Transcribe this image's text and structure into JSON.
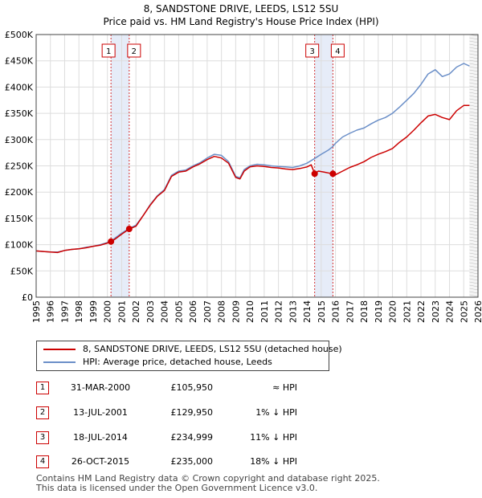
{
  "title": {
    "line1": "8, SANDSTONE DRIVE, LEEDS, LS12 5SU",
    "line2": "Price paid vs. HM Land Registry's House Price Index (HPI)"
  },
  "legend": {
    "property": "8, SANDSTONE DRIVE, LEEDS, LS12 5SU (detached house)",
    "hpi": "HPI: Average price, detached house, Leeds"
  },
  "colors": {
    "property": "#cc0000",
    "hpi": "#6b8fc8",
    "band": "#e6ecf8",
    "grid": "#dddddd"
  },
  "sales": [
    {
      "num": "1",
      "date": "31-MAR-2000",
      "price": "£105,950",
      "hpi_rel": "≈ HPI"
    },
    {
      "num": "2",
      "date": "13-JUL-2001",
      "price": "£129,950",
      "hpi_rel": "1% ↓ HPI"
    },
    {
      "num": "3",
      "date": "18-JUL-2014",
      "price": "£234,999",
      "hpi_rel": "11% ↓ HPI"
    },
    {
      "num": "4",
      "date": "26-OCT-2015",
      "price": "£235,000",
      "hpi_rel": "18% ↓ HPI"
    }
  ],
  "footer": {
    "line1": "Contains HM Land Registry data © Crown copyright and database right 2025.",
    "line2": "This data is licensed under the Open Government Licence v3.0."
  },
  "chart_data": {
    "type": "line",
    "title": "8, SANDSTONE DRIVE, LEEDS, LS12 5SU — Price paid vs. HM Land Registry's House Price Index (HPI)",
    "xlabel": "",
    "ylabel": "",
    "xlim": [
      1995,
      2026
    ],
    "ylim": [
      0,
      500000
    ],
    "grid": true,
    "x_ticks": [
      1995,
      1996,
      1997,
      1998,
      1999,
      2000,
      2001,
      2002,
      2003,
      2004,
      2005,
      2006,
      2007,
      2008,
      2009,
      2010,
      2011,
      2012,
      2013,
      2014,
      2015,
      2016,
      2017,
      2018,
      2019,
      2020,
      2021,
      2022,
      2023,
      2024,
      2025,
      2026
    ],
    "y_ticks": [
      {
        "value": 0,
        "label": "£0"
      },
      {
        "value": 50000,
        "label": "£50K"
      },
      {
        "value": 100000,
        "label": "£100K"
      },
      {
        "value": 150000,
        "label": "£150K"
      },
      {
        "value": 200000,
        "label": "£200K"
      },
      {
        "value": 250000,
        "label": "£250K"
      },
      {
        "value": 300000,
        "label": "£300K"
      },
      {
        "value": 350000,
        "label": "£350K"
      },
      {
        "value": 400000,
        "label": "£400K"
      },
      {
        "value": 450000,
        "label": "£450K"
      },
      {
        "value": 500000,
        "label": "£500K"
      }
    ],
    "highlight_bands": [
      [
        2000.25,
        2001.53
      ],
      [
        2014.54,
        2015.82
      ]
    ],
    "future_from": 2025.4,
    "series": [
      {
        "name": "8, SANDSTONE DRIVE, LEEDS, LS12 5SU (detached house)",
        "color": "#cc0000",
        "points": [
          [
            1995.0,
            88000
          ],
          [
            1995.5,
            87000
          ],
          [
            1996.0,
            86000
          ],
          [
            1996.5,
            85000
          ],
          [
            1997.0,
            89000
          ],
          [
            1997.5,
            91000
          ],
          [
            1998.0,
            92000
          ],
          [
            1998.5,
            94000
          ],
          [
            1999.0,
            97000
          ],
          [
            1999.5,
            99000
          ],
          [
            2000.0,
            103000
          ],
          [
            2000.25,
            105950
          ],
          [
            2000.5,
            110000
          ],
          [
            2001.0,
            120000
          ],
          [
            2001.53,
            129950
          ],
          [
            2002.0,
            135000
          ],
          [
            2002.5,
            155000
          ],
          [
            2003.0,
            175000
          ],
          [
            2003.5,
            192000
          ],
          [
            2004.0,
            203000
          ],
          [
            2004.5,
            230000
          ],
          [
            2005.0,
            238000
          ],
          [
            2005.5,
            240000
          ],
          [
            2006.0,
            248000
          ],
          [
            2006.5,
            254000
          ],
          [
            2007.0,
            262000
          ],
          [
            2007.5,
            268000
          ],
          [
            2008.0,
            265000
          ],
          [
            2008.5,
            255000
          ],
          [
            2009.0,
            228000
          ],
          [
            2009.3,
            225000
          ],
          [
            2009.6,
            240000
          ],
          [
            2010.0,
            248000
          ],
          [
            2010.5,
            250000
          ],
          [
            2011.0,
            249000
          ],
          [
            2011.5,
            247000
          ],
          [
            2012.0,
            246000
          ],
          [
            2012.5,
            244000
          ],
          [
            2013.0,
            243000
          ],
          [
            2013.5,
            245000
          ],
          [
            2014.0,
            248000
          ],
          [
            2014.3,
            252000
          ],
          [
            2014.54,
            234999
          ],
          [
            2014.8,
            240000
          ],
          [
            2015.2,
            238000
          ],
          [
            2015.6,
            236000
          ],
          [
            2015.82,
            235000
          ],
          [
            2016.0,
            233000
          ],
          [
            2016.5,
            240000
          ],
          [
            2017.0,
            247000
          ],
          [
            2017.5,
            252000
          ],
          [
            2018.0,
            258000
          ],
          [
            2018.5,
            266000
          ],
          [
            2019.0,
            272000
          ],
          [
            2019.5,
            277000
          ],
          [
            2020.0,
            283000
          ],
          [
            2020.5,
            295000
          ],
          [
            2021.0,
            305000
          ],
          [
            2021.5,
            318000
          ],
          [
            2022.0,
            332000
          ],
          [
            2022.5,
            345000
          ],
          [
            2023.0,
            348000
          ],
          [
            2023.5,
            342000
          ],
          [
            2024.0,
            338000
          ],
          [
            2024.5,
            355000
          ],
          [
            2025.0,
            365000
          ],
          [
            2025.4,
            365000
          ]
        ]
      },
      {
        "name": "HPI: Average price, detached house, Leeds",
        "color": "#6b8fc8",
        "points": [
          [
            1995.0,
            88000
          ],
          [
            1995.5,
            87000
          ],
          [
            1996.0,
            86000
          ],
          [
            1996.5,
            86000
          ],
          [
            1997.0,
            89000
          ],
          [
            1997.5,
            91000
          ],
          [
            1998.0,
            92000
          ],
          [
            1998.5,
            95000
          ],
          [
            1999.0,
            97000
          ],
          [
            1999.5,
            100000
          ],
          [
            2000.0,
            104000
          ],
          [
            2000.25,
            106000
          ],
          [
            2000.5,
            112000
          ],
          [
            2001.0,
            122000
          ],
          [
            2001.53,
            131000
          ],
          [
            2002.0,
            137000
          ],
          [
            2002.5,
            155000
          ],
          [
            2003.0,
            176000
          ],
          [
            2003.5,
            193000
          ],
          [
            2004.0,
            205000
          ],
          [
            2004.5,
            232000
          ],
          [
            2005.0,
            240000
          ],
          [
            2005.5,
            242000
          ],
          [
            2006.0,
            250000
          ],
          [
            2006.5,
            256000
          ],
          [
            2007.0,
            265000
          ],
          [
            2007.5,
            272000
          ],
          [
            2008.0,
            270000
          ],
          [
            2008.5,
            258000
          ],
          [
            2009.0,
            230000
          ],
          [
            2009.3,
            227000
          ],
          [
            2009.6,
            243000
          ],
          [
            2010.0,
            250000
          ],
          [
            2010.5,
            253000
          ],
          [
            2011.0,
            252000
          ],
          [
            2011.5,
            250000
          ],
          [
            2012.0,
            249000
          ],
          [
            2012.5,
            248000
          ],
          [
            2013.0,
            247000
          ],
          [
            2013.5,
            250000
          ],
          [
            2014.0,
            255000
          ],
          [
            2014.54,
            264000
          ],
          [
            2015.0,
            272000
          ],
          [
            2015.5,
            280000
          ],
          [
            2015.82,
            287000
          ],
          [
            2016.0,
            293000
          ],
          [
            2016.5,
            305000
          ],
          [
            2017.0,
            312000
          ],
          [
            2017.5,
            318000
          ],
          [
            2018.0,
            322000
          ],
          [
            2018.5,
            330000
          ],
          [
            2019.0,
            337000
          ],
          [
            2019.5,
            342000
          ],
          [
            2020.0,
            350000
          ],
          [
            2020.5,
            362000
          ],
          [
            2021.0,
            375000
          ],
          [
            2021.5,
            388000
          ],
          [
            2022.0,
            405000
          ],
          [
            2022.5,
            425000
          ],
          [
            2023.0,
            433000
          ],
          [
            2023.5,
            420000
          ],
          [
            2024.0,
            425000
          ],
          [
            2024.5,
            438000
          ],
          [
            2025.0,
            445000
          ],
          [
            2025.4,
            440000
          ]
        ]
      }
    ],
    "markers": [
      {
        "label": "1",
        "x": 2000.25,
        "y": 105950
      },
      {
        "label": "2",
        "x": 2001.53,
        "y": 129950
      },
      {
        "label": "3",
        "x": 2014.54,
        "y": 234999
      },
      {
        "label": "4",
        "x": 2015.82,
        "y": 235000
      }
    ]
  }
}
